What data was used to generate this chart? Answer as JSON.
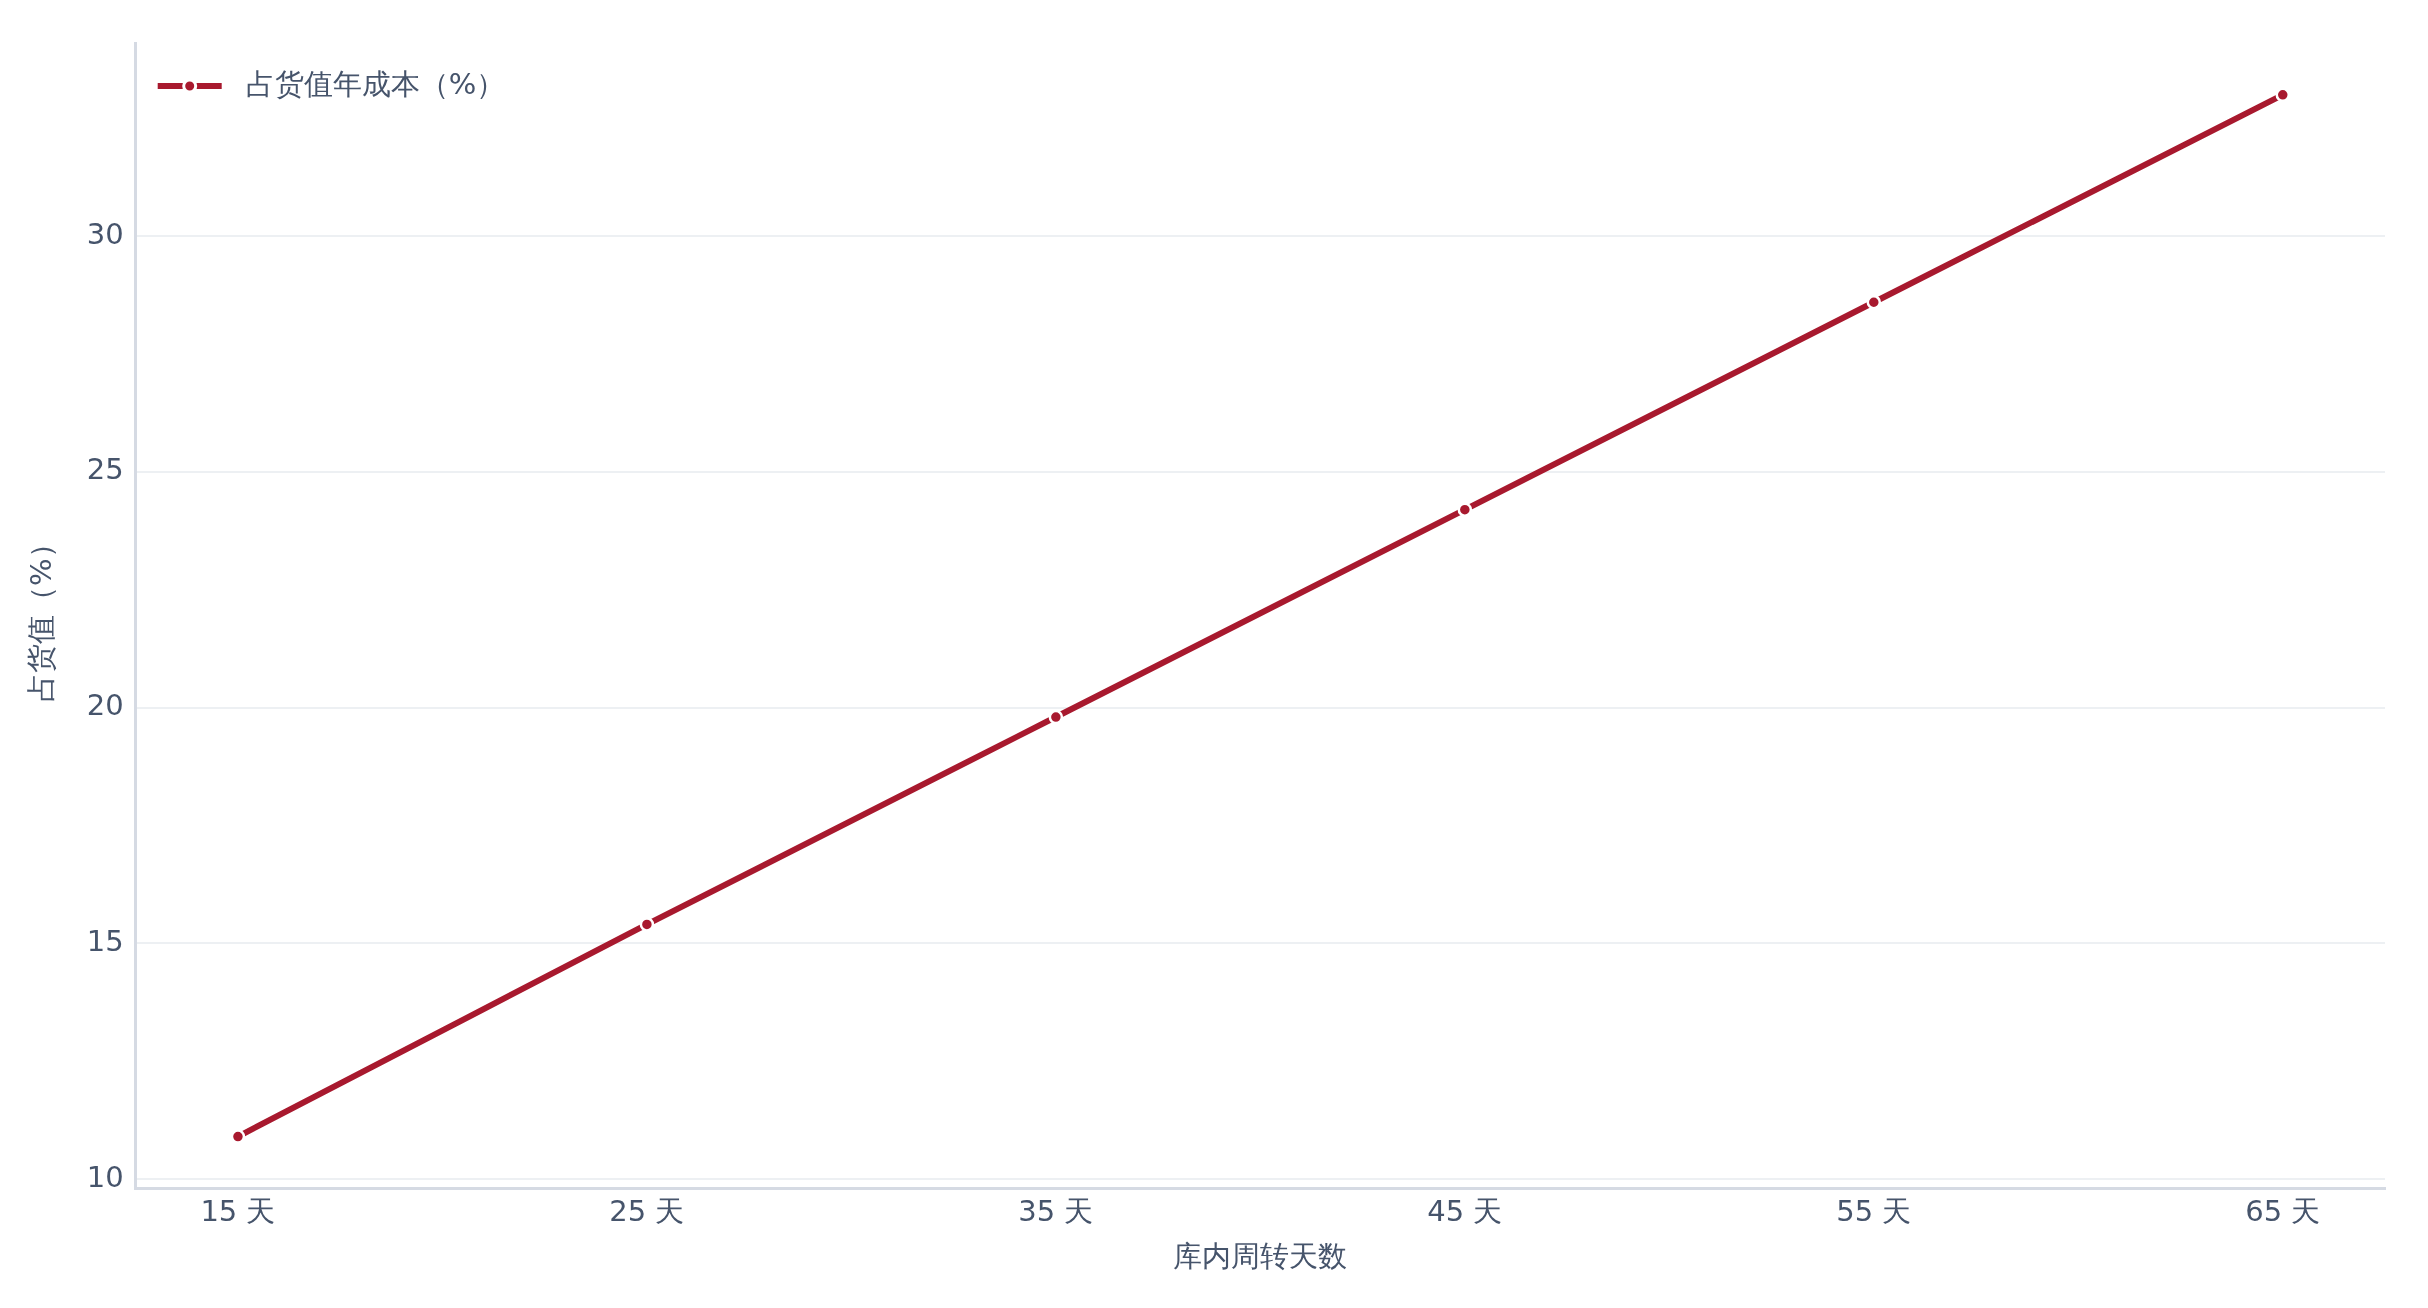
{
  "chart_data": {
    "type": "line",
    "xlabel": "库内周转天数",
    "ylabel": "占货值（%）",
    "categories": [
      "15 天",
      "25 天",
      "35 天",
      "45 天",
      "55 天",
      "65 天"
    ],
    "series": [
      {
        "name": "占货值年成本（%）",
        "color": "#a8192e",
        "values": [
          10.9,
          15.4,
          19.8,
          24.2,
          28.6,
          33.0
        ]
      }
    ],
    "ylim": [
      9.8,
      34.1
    ],
    "yticks": [
      10,
      15,
      20,
      25,
      30
    ],
    "grid": "y",
    "legend": "top left",
    "marker": "circle",
    "line_style": "solid"
  }
}
